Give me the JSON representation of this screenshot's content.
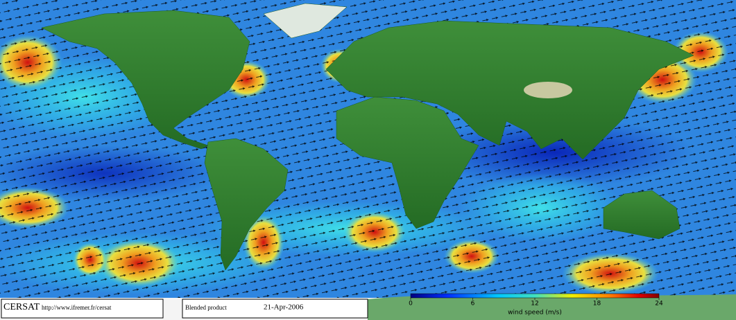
{
  "footer": {
    "institution": "CERSAT",
    "url": "http://www.ifremer.fr/cersat",
    "product": "Blended product",
    "date": "21-Apr-2006"
  },
  "colorbar": {
    "label": "wind speed (m/s)",
    "lim": [
      0,
      24
    ],
    "ticks": [
      0,
      6,
      12,
      18,
      24
    ]
  }
}
